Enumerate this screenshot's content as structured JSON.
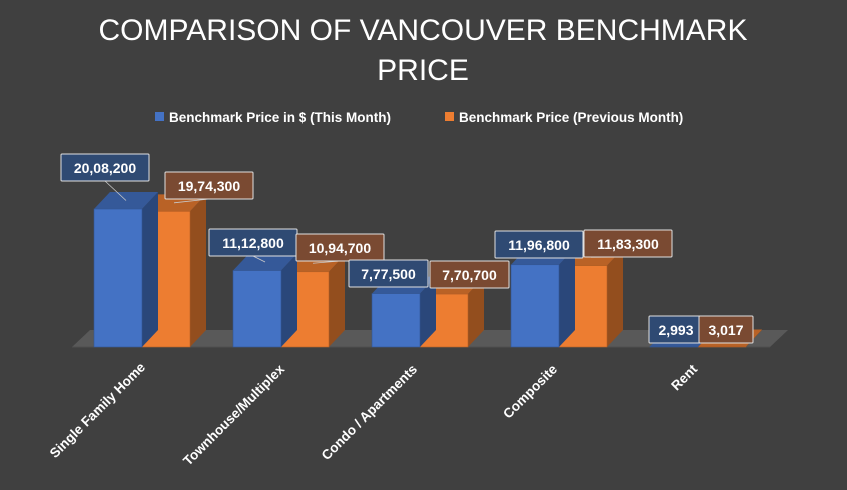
{
  "chart_data": {
    "type": "bar",
    "title": "COMPARISON OF VANCOUVER BENCHMARK PRICE",
    "categories": [
      "Single Family Home",
      "Townhouse/Multiplex",
      "Condo / Apartments",
      "Composite",
      "Rent"
    ],
    "series": [
      {
        "name": "Benchmark Price in $ (This Month)",
        "color": "#4472C4",
        "values": [
          2008200,
          1112800,
          777500,
          1196800,
          2993
        ],
        "labels": [
          "20,08,200",
          "11,12,800",
          "7,77,500",
          "11,96,800",
          "2,993"
        ]
      },
      {
        "name": "Benchmark Price (Previous Month)",
        "color": "#ED7D31",
        "values": [
          1974300,
          1094700,
          770700,
          1183300,
          3017
        ],
        "labels": [
          "19,74,300",
          "10,94,700",
          "7,70,700",
          "11,83,300",
          "3,017"
        ]
      }
    ],
    "legend_position": "top",
    "grid": false,
    "style": "3d-clustered-column"
  }
}
